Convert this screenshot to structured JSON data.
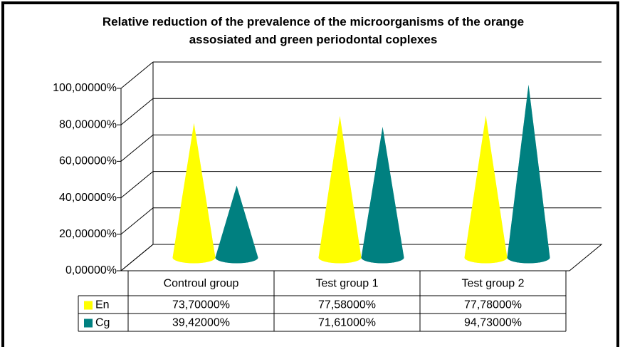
{
  "chart_data": {
    "type": "cone",
    "title": "Relative reduction of the prevalence of the microorganisms of the orange assosiated  and green periodontal coplexes",
    "categories": [
      "Controul group",
      "Test group 1",
      "Test group 2"
    ],
    "series": [
      {
        "name": "En",
        "color": "#ffff00",
        "values": [
          73.7,
          77.58,
          77.78
        ],
        "value_labels": [
          "73,70000%",
          "77,58000%",
          "77,78000%"
        ]
      },
      {
        "name": "Cg",
        "color": "#008080",
        "values": [
          39.42,
          71.61,
          94.73
        ],
        "value_labels": [
          "39,42000%",
          "71,61000%",
          "94,73000%"
        ]
      }
    ],
    "ylim": [
      0,
      100
    ],
    "yticks": [
      {
        "value": 0,
        "label": "0,00000%"
      },
      {
        "value": 20,
        "label": "20,00000%"
      },
      {
        "value": 40,
        "label": "40,00000%"
      },
      {
        "value": 60,
        "label": "60,00000%"
      },
      {
        "value": 80,
        "label": "80,00000%"
      },
      {
        "value": 100,
        "label": "100,00000%"
      }
    ],
    "grid": true
  }
}
